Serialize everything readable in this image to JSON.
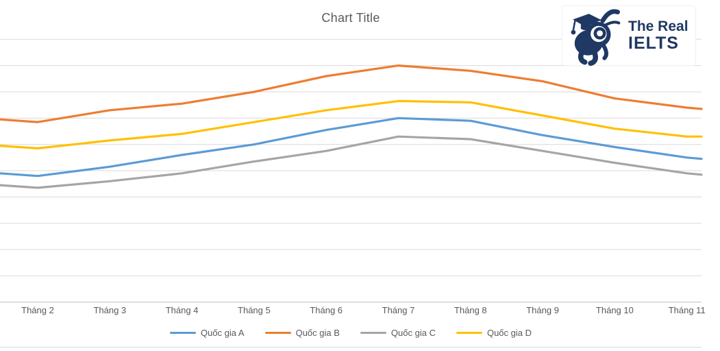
{
  "logo": {
    "line1": "The Real",
    "line2": "IELTS",
    "color": "#1f3864"
  },
  "chart_data": {
    "type": "line",
    "title": "Chart Title",
    "title_color": "#595959",
    "categories": [
      "Tháng 2",
      "Tháng 3",
      "Tháng 4",
      "Tháng 5",
      "Tháng 6",
      "Tháng 7",
      "Tháng 8",
      "Tháng 9",
      "Tháng 10",
      "Tháng 11"
    ],
    "series": [
      {
        "name": "Quốc gia A",
        "color": "#5b9bd5",
        "values": [
          4.8,
          5.15,
          5.6,
          6.0,
          6.55,
          7.0,
          6.9,
          6.35,
          5.9,
          5.5
        ],
        "left_edge": 4.9,
        "right_edge": 5.45
      },
      {
        "name": "Quốc gia B",
        "color": "#ed7d31",
        "values": [
          6.85,
          7.3,
          7.55,
          8.0,
          8.6,
          9.0,
          8.8,
          8.4,
          7.75,
          7.4
        ],
        "left_edge": 6.95,
        "right_edge": 7.35
      },
      {
        "name": "Quốc gia C",
        "color": "#a5a5a5",
        "values": [
          4.35,
          4.6,
          4.9,
          5.35,
          5.75,
          6.3,
          6.2,
          5.75,
          5.3,
          4.9
        ],
        "left_edge": 4.45,
        "right_edge": 4.85
      },
      {
        "name": "Quốc gia D",
        "color": "#ffc000",
        "values": [
          5.85,
          6.15,
          6.4,
          6.85,
          7.3,
          7.65,
          7.6,
          7.1,
          6.6,
          6.3
        ],
        "left_edge": 5.95,
        "right_edge": 6.3
      }
    ],
    "legend_order": [
      "Quốc gia A",
      "Quốc gia B",
      "Quốc gia C",
      "Quốc gia D"
    ],
    "value_axis": {
      "min": 0,
      "max": 10,
      "gridline_step": 1,
      "labels_visible": false
    },
    "grid": true,
    "gridline_color": "#d9d9d9",
    "axis_line_color": "#bfbfbf",
    "legend_position": "bottom",
    "crop_hint": "chart is cropped: value-axis labels hidden, lines run to both canvas edges"
  }
}
